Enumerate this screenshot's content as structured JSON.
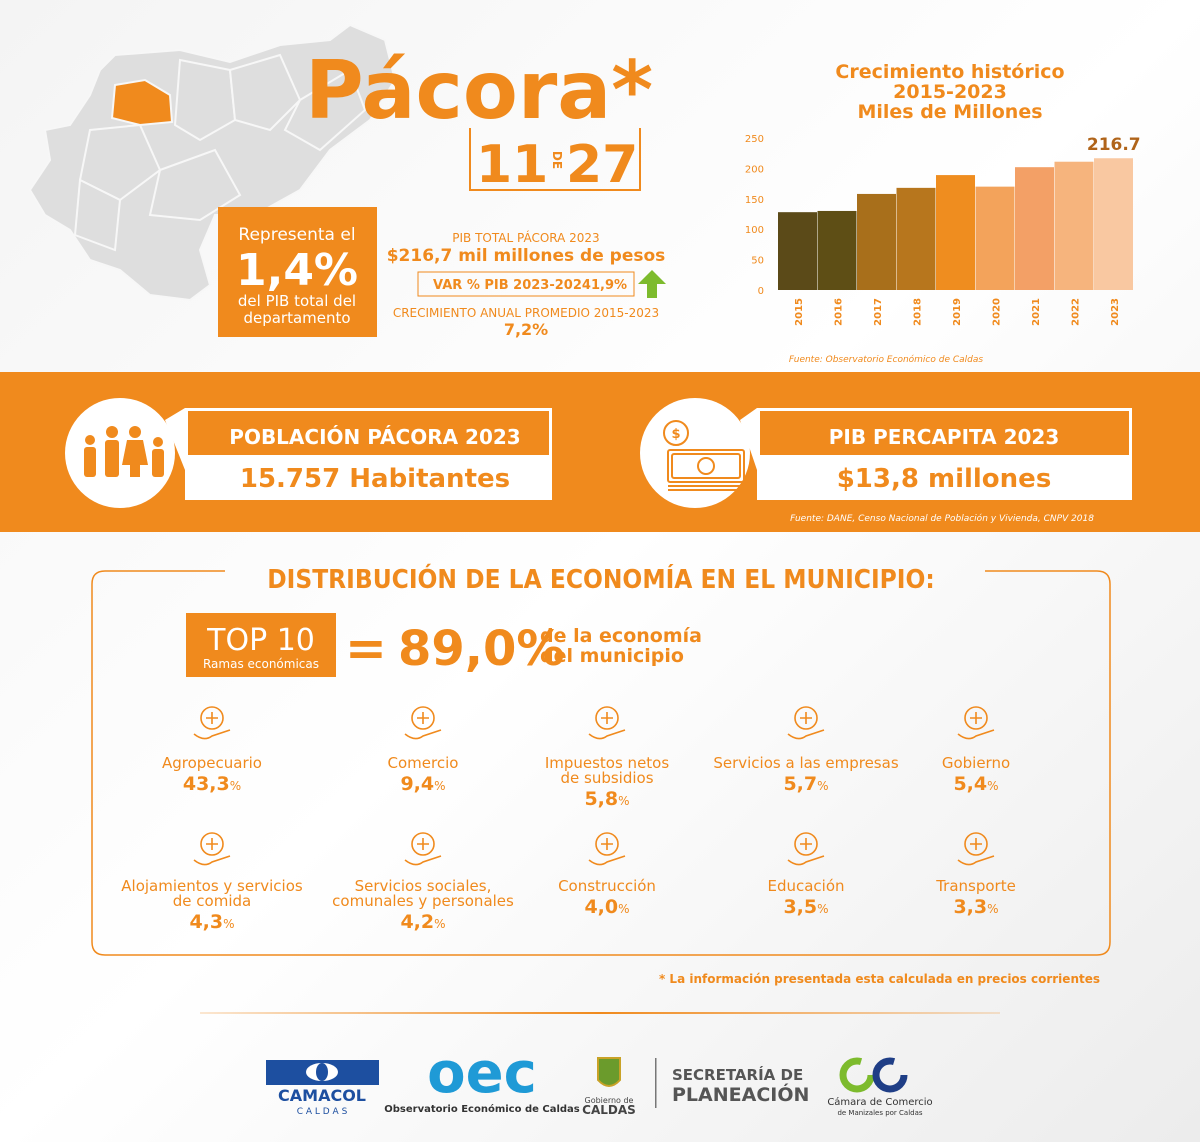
{
  "header": {
    "title": "Pácora*",
    "rank": "11",
    "rank_sep": "DE",
    "rank_total": "27"
  },
  "share": {
    "line1": "Representa el",
    "value": "1,4%",
    "line2": "del PIB total del",
    "line3": "departamento"
  },
  "pib": {
    "label": "PIB TOTAL PÁCORA 2023",
    "value": "$216,7 mil millones de pesos",
    "var_label": "VAR % PIB 2023-2024",
    "var_value": "1,9%",
    "growth_label": "CRECIMIENTO ANUAL PROMEDIO 2015-2023",
    "growth_value": "7,2%"
  },
  "chart_data": {
    "type": "bar",
    "title": [
      "Crecimiento histórico",
      "2015-2023",
      "Miles de Millones"
    ],
    "categories": [
      "2015",
      "2016",
      "2017",
      "2018",
      "2019",
      "2020",
      "2021",
      "2022",
      "2023"
    ],
    "values": [
      128,
      130,
      158,
      168,
      189,
      170,
      202,
      211,
      216.7
    ],
    "value_labels": [
      null,
      null,
      null,
      null,
      null,
      null,
      null,
      null,
      "216.7"
    ],
    "colors": [
      "#5b4a18",
      "#5e4e15",
      "#a86f1b",
      "#b7761d",
      "#ef8d1f",
      "#f3a35b",
      "#f3a066",
      "#f6b47d",
      "#f9c8a1"
    ],
    "ylim": [
      0,
      250
    ],
    "yticks": [
      0,
      50,
      100,
      150,
      200,
      250
    ],
    "grid": false,
    "source": "Fuente: Observatorio Económico de Caldas"
  },
  "population": {
    "title": "POBLACIÓN PÁCORA 2023",
    "value": "15.757 Habitantes"
  },
  "percapita": {
    "title": "PIB PERCAPITA 2023",
    "value": "$13,8 millones"
  },
  "band_source": "Fuente: DANE, Censo Nacional de Población y Vivienda, CNPV 2018",
  "distribution": {
    "title": "DISTRIBUCIÓN DE LA ECONOMÍA EN EL MUNICIPIO:",
    "top": "TOP 10",
    "top_sub": "Ramas económicas",
    "equals": "=",
    "share": "89,0%",
    "share_text": [
      "de la economía",
      "del municipio"
    ],
    "sectors": [
      {
        "name": [
          "Agropecuario"
        ],
        "value": "43,3",
        "unit": "%"
      },
      {
        "name": [
          "Comercio"
        ],
        "value": "9,4",
        "unit": "%"
      },
      {
        "name": [
          "Impuestos netos",
          "de subsidios"
        ],
        "value": "5,8",
        "unit": "%"
      },
      {
        "name": [
          "Servicios a las empresas"
        ],
        "value": "5,7",
        "unit": "%"
      },
      {
        "name": [
          "Gobierno"
        ],
        "value": "5,4",
        "unit": "%"
      },
      {
        "name": [
          "Alojamientos y servicios",
          "de comida"
        ],
        "value": "4,3",
        "unit": "%"
      },
      {
        "name": [
          "Servicios sociales,",
          "comunales y personales"
        ],
        "value": "4,2",
        "unit": "%"
      },
      {
        "name": [
          "Construcción"
        ],
        "value": "4,0",
        "unit": "%"
      },
      {
        "name": [
          "Educación"
        ],
        "value": "3,5",
        "unit": "%"
      },
      {
        "name": [
          "Transporte"
        ],
        "value": "3,3",
        "unit": "%"
      }
    ]
  },
  "footnote": "* La información presentada esta calculada en precios corrientes",
  "logos": {
    "camacol": "CAMACOL",
    "camacol_sub": "C A L D A S",
    "oec": "oec",
    "oec_sub": "Observatorio Económico de Caldas",
    "gob_1": "Gobierno de",
    "gob_2": "CALDAS",
    "sec_1": "SECRETARÍA DE",
    "sec_2": "PLANEACIÓN",
    "camara_1": "Cámara de Comercio",
    "camara_2": "de Manizales por Caldas"
  }
}
